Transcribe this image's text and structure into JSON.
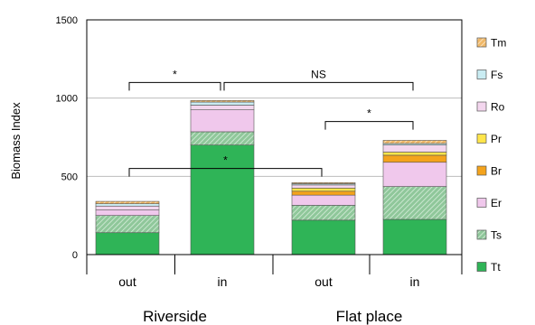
{
  "chart_data": {
    "type": "bar",
    "stacked": true,
    "ylabel": "Biomass Index",
    "ylim": [
      0,
      1500
    ],
    "yticks": [
      "0",
      "500",
      "1000",
      "1500"
    ],
    "grid": true,
    "legend": "right",
    "categories": [
      "out",
      "in",
      "out",
      "in"
    ],
    "groups": [
      {
        "label": "Riverside",
        "categories": [
          0,
          1
        ]
      },
      {
        "label": "Flat place",
        "categories": [
          2,
          3
        ]
      }
    ],
    "series": [
      {
        "name": "Tt",
        "color": "#2fb457",
        "pattern": "solid",
        "values": [
          140,
          700,
          220,
          225
        ]
      },
      {
        "name": "Ts",
        "color": "#9ccfa4",
        "pattern": "hatched",
        "values": [
          110,
          85,
          95,
          210
        ]
      },
      {
        "name": "Er",
        "color": "#f0c8ec",
        "pattern": "solid",
        "values": [
          35,
          140,
          65,
          155
        ]
      },
      {
        "name": "Br",
        "color": "#f4a31c",
        "pattern": "solid",
        "values": [
          0,
          0,
          25,
          45
        ]
      },
      {
        "name": "Pr",
        "color": "#ffe54a",
        "pattern": "solid",
        "values": [
          0,
          0,
          20,
          20
        ]
      },
      {
        "name": "Ro",
        "color": "#f3d6ee",
        "pattern": "solid",
        "values": [
          25,
          30,
          20,
          45
        ]
      },
      {
        "name": "Fs",
        "color": "#c9ecf2",
        "pattern": "solid",
        "values": [
          15,
          20,
          8,
          10
        ]
      },
      {
        "name": "Tm",
        "color": "#f5c98a",
        "pattern": "hatched",
        "values": [
          15,
          10,
          7,
          20
        ]
      }
    ],
    "significance": [
      {
        "label": "*",
        "from": 0,
        "to": 1,
        "level": 1100
      },
      {
        "label": "NS",
        "from": 1,
        "to": 3,
        "level": 1100
      },
      {
        "label": "*",
        "from": 2,
        "to": 3,
        "level": 850
      },
      {
        "label": "*",
        "from": 0,
        "to": 2,
        "level": 550
      }
    ]
  }
}
